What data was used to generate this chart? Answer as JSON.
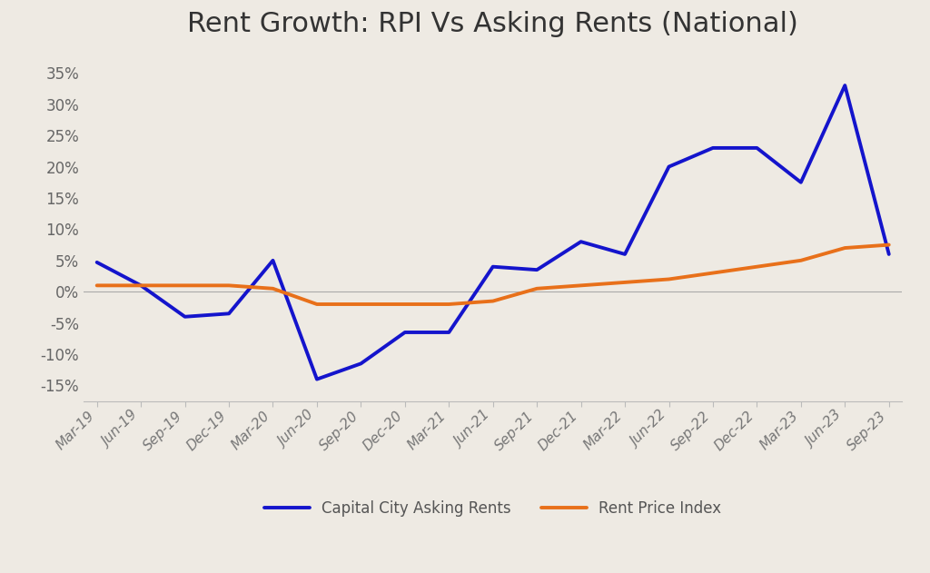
{
  "title": "Rent Growth: RPI Vs Asking Rents (National)",
  "background_color": "#eeeae3",
  "plot_bg_color": "#eeeae3",
  "x_labels": [
    "Mar-19",
    "Jun-19",
    "Sep-19",
    "Dec-19",
    "Mar-20",
    "Jun-20",
    "Sep-20",
    "Dec-20",
    "Mar-21",
    "Jun-21",
    "Sep-21",
    "Dec-21",
    "Mar-22",
    "Jun-22",
    "Sep-22",
    "Dec-22",
    "Mar-23",
    "Jun-23",
    "Sep-23"
  ],
  "asking_rents": [
    0.047,
    0.01,
    -0.04,
    -0.035,
    0.05,
    -0.14,
    -0.115,
    -0.065,
    -0.065,
    0.04,
    0.035,
    0.08,
    0.06,
    0.2,
    0.23,
    0.23,
    0.175,
    0.33,
    0.06
  ],
  "rpi": [
    0.01,
    0.01,
    0.01,
    0.01,
    0.005,
    -0.02,
    -0.02,
    -0.02,
    -0.02,
    -0.015,
    0.005,
    0.01,
    0.015,
    0.02,
    0.03,
    0.04,
    0.05,
    0.07,
    0.075
  ],
  "asking_color": "#1414cc",
  "rpi_color": "#e8701a",
  "ylim": [
    -0.175,
    0.375
  ],
  "yticks": [
    -0.15,
    -0.1,
    -0.05,
    0.0,
    0.05,
    0.1,
    0.15,
    0.2,
    0.25,
    0.3,
    0.35
  ],
  "legend_asking": "Capital City Asking Rents",
  "legend_rpi": "Rent Price Index",
  "title_fontsize": 22,
  "axis_fontsize": 11,
  "legend_fontsize": 12,
  "line_width": 2.8
}
